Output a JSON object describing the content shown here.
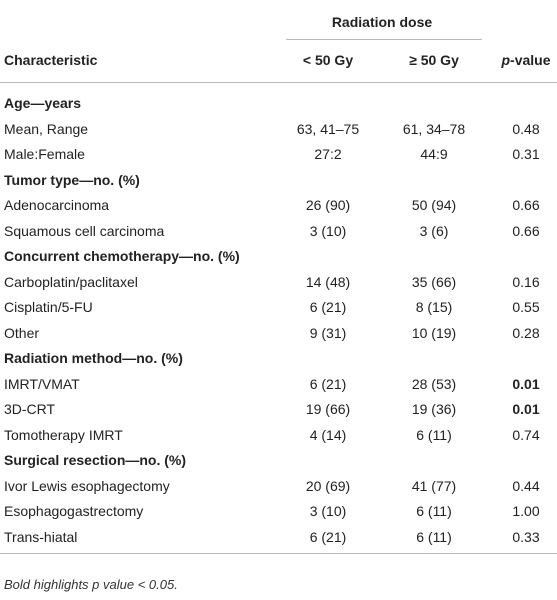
{
  "table": {
    "group_header": "Radiation dose",
    "columns": [
      "Characteristic",
      "< 50 Gy",
      "≥ 50 Gy",
      "p-value"
    ],
    "rows": [
      {
        "section": "Age—years"
      },
      {
        "cells": [
          "Mean, Range",
          "63, 41–75",
          "61, 34–78",
          "0.48"
        ]
      },
      {
        "cells": [
          "Male:Female",
          "27:2",
          "44:9",
          "0.31"
        ]
      },
      {
        "section": "Tumor type—no. (%)"
      },
      {
        "cells": [
          "Adenocarcinoma",
          "26 (90)",
          "50 (94)",
          "0.66"
        ]
      },
      {
        "cells": [
          "Squamous cell carcinoma",
          "3 (10)",
          "3 (6)",
          "0.66"
        ]
      },
      {
        "section": "Concurrent chemotherapy—no. (%)"
      },
      {
        "cells": [
          "Carboplatin/paclitaxel",
          "14 (48)",
          "35 (66)",
          "0.16"
        ]
      },
      {
        "cells": [
          "Cisplatin/5-FU",
          "6 (21)",
          "8 (15)",
          "0.55"
        ]
      },
      {
        "cells": [
          "Other",
          "9 (31)",
          "10 (19)",
          "0.28"
        ]
      },
      {
        "section": "Radiation method—no. (%)"
      },
      {
        "cells": [
          "IMRT/VMAT",
          "6 (21)",
          "28 (53)",
          "0.01"
        ],
        "p_bold": true
      },
      {
        "cells": [
          "3D-CRT",
          "19 (66)",
          "19 (36)",
          "0.01"
        ],
        "p_bold": true
      },
      {
        "cells": [
          "Tomotherapy IMRT",
          "4 (14)",
          "6 (11)",
          "0.74"
        ]
      },
      {
        "section": "Surgical resection—no. (%)"
      },
      {
        "cells": [
          "Ivor Lewis esophagectomy",
          "20 (69)",
          "41 (77)",
          "0.44"
        ]
      },
      {
        "cells": [
          "Esophagogastrectomy",
          "3 (10)",
          "6 (11)",
          "1.00"
        ]
      },
      {
        "cells": [
          "Trans-hiatal",
          "6 (21)",
          "6 (11)",
          "0.33"
        ]
      }
    ],
    "footnote": "Bold highlights p value < 0.05."
  }
}
